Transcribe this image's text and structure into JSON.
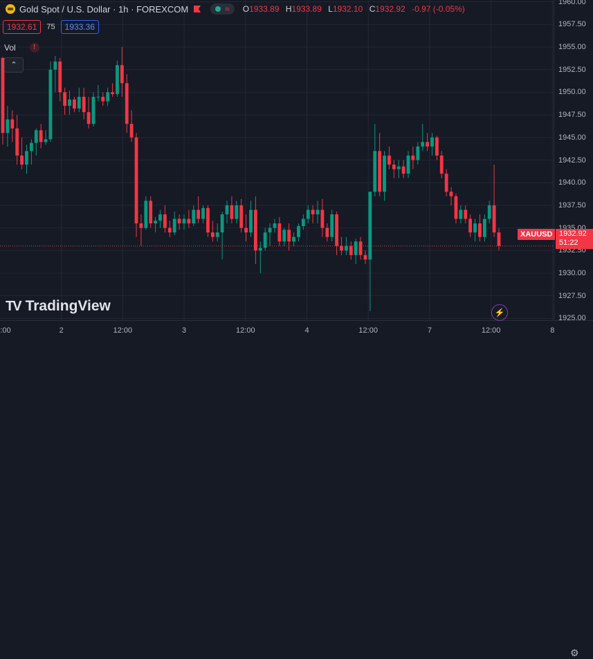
{
  "header": {
    "symbol_title": "Gold Spot / U.S. Dollar · 1h · FOREXCOM",
    "market_pill_symbol": "≈",
    "ohlc": {
      "open_key": "O",
      "open": "1933.89",
      "high_key": "H",
      "high": "1933.89",
      "low_key": "L",
      "low": "1932.10",
      "close_key": "C",
      "close": "1932.92",
      "change": "-0.97 (-0.05%)"
    }
  },
  "quote": {
    "sell": "1932.61",
    "spread": "75",
    "buy": "1933.36"
  },
  "volume": {
    "label": "Vol",
    "warning": "!"
  },
  "current_price": {
    "symbol": "XAUUSD",
    "price": "1932.92",
    "countdown": "51:22"
  },
  "brand": {
    "name": "TradingView",
    "mark": "TV"
  },
  "colors": {
    "up": "#089981",
    "down": "#f23645",
    "background": "#161a25",
    "grid": "#232734"
  },
  "icons": {
    "collapse": "chevron-up-icon",
    "alert": "flash-icon",
    "settings": "gear-icon"
  },
  "chart_data": {
    "type": "candlestick",
    "yticks": [
      "1960.00",
      "1957.50",
      "1955.00",
      "1952.50",
      "1950.00",
      "1947.50",
      "1945.00",
      "1942.50",
      "1940.00",
      "1937.50",
      "1935.00",
      "1932.50",
      "1930.00",
      "1927.50",
      "1925.00"
    ],
    "xticks": [
      ":00",
      "2",
      "12:00",
      "3",
      "12:00",
      "4",
      "12:00",
      "7",
      "12:00",
      "8"
    ],
    "ylim": [
      1924.8,
      1960.2
    ],
    "candles": [
      [
        1953.8,
        1953.9,
        1944.2,
        1945.5
      ],
      [
        1945.5,
        1948.5,
        1944.0,
        1947.0
      ],
      [
        1947.0,
        1948.0,
        1944.5,
        1946.0
      ],
      [
        1946.0,
        1947.5,
        1942.0,
        1943.0
      ],
      [
        1943.0,
        1945.0,
        1941.5,
        1942.0
      ],
      [
        1942.0,
        1944.2,
        1941.0,
        1943.5
      ],
      [
        1943.5,
        1944.8,
        1942.0,
        1944.4
      ],
      [
        1944.4,
        1946.0,
        1943.0,
        1945.8
      ],
      [
        1945.8,
        1946.5,
        1943.8,
        1944.5
      ],
      [
        1944.5,
        1945.8,
        1944.2,
        1944.8
      ],
      [
        1944.8,
        1953.4,
        1944.5,
        1952.5
      ],
      [
        1952.5,
        1954.0,
        1950.0,
        1953.4
      ],
      [
        1953.4,
        1953.8,
        1949.0,
        1950.0
      ],
      [
        1950.0,
        1950.5,
        1947.5,
        1948.5
      ],
      [
        1948.5,
        1950.2,
        1947.5,
        1949.2
      ],
      [
        1949.2,
        1949.5,
        1947.8,
        1948.2
      ],
      [
        1948.2,
        1950.5,
        1947.8,
        1949.5
      ],
      [
        1949.5,
        1950.5,
        1947.0,
        1947.8
      ],
      [
        1947.8,
        1949.5,
        1946.0,
        1946.5
      ],
      [
        1946.5,
        1950.0,
        1946.2,
        1949.5
      ],
      [
        1949.5,
        1950.8,
        1949.0,
        1949.5
      ],
      [
        1949.5,
        1950.0,
        1948.5,
        1949.0
      ],
      [
        1949.0,
        1950.5,
        1948.5,
        1950.0
      ],
      [
        1950.0,
        1951.0,
        1949.5,
        1949.8
      ],
      [
        1949.8,
        1953.5,
        1949.5,
        1953.0
      ],
      [
        1953.0,
        1955.0,
        1949.5,
        1951.0
      ],
      [
        1951.0,
        1952.0,
        1945.5,
        1946.5
      ],
      [
        1946.5,
        1948.0,
        1944.5,
        1945.0
      ],
      [
        1945.0,
        1945.5,
        1934.0,
        1935.5
      ],
      [
        1935.5,
        1936.5,
        1933.0,
        1935.0
      ],
      [
        1935.0,
        1938.5,
        1934.8,
        1938.0
      ],
      [
        1938.0,
        1938.5,
        1935.0,
        1935.5
      ],
      [
        1935.5,
        1936.2,
        1934.5,
        1935.8
      ],
      [
        1935.8,
        1937.0,
        1935.0,
        1936.5
      ],
      [
        1936.5,
        1937.5,
        1934.5,
        1935.0
      ],
      [
        1935.0,
        1935.8,
        1934.0,
        1934.5
      ],
      [
        1934.5,
        1936.8,
        1934.2,
        1936.0
      ],
      [
        1936.0,
        1936.5,
        1934.8,
        1935.5
      ],
      [
        1935.5,
        1936.5,
        1934.8,
        1936.0
      ],
      [
        1936.0,
        1937.0,
        1935.0,
        1935.5
      ],
      [
        1935.5,
        1937.5,
        1935.2,
        1937.0
      ],
      [
        1937.0,
        1938.5,
        1935.5,
        1936.0
      ],
      [
        1936.0,
        1937.5,
        1935.5,
        1937.2
      ],
      [
        1937.2,
        1937.5,
        1934.0,
        1934.5
      ],
      [
        1934.5,
        1935.8,
        1933.5,
        1934.0
      ],
      [
        1934.0,
        1935.5,
        1933.5,
        1934.5
      ],
      [
        1934.5,
        1936.8,
        1931.5,
        1936.5
      ],
      [
        1936.5,
        1938.0,
        1935.5,
        1937.5
      ],
      [
        1937.5,
        1938.5,
        1935.5,
        1936.0
      ],
      [
        1936.0,
        1938.0,
        1935.5,
        1937.5
      ],
      [
        1937.5,
        1938.2,
        1934.5,
        1935.0
      ],
      [
        1935.0,
        1936.5,
        1933.5,
        1934.5
      ],
      [
        1934.5,
        1938.0,
        1934.0,
        1937.0
      ],
      [
        1937.0,
        1938.5,
        1931.0,
        1932.5
      ],
      [
        1932.5,
        1933.5,
        1930.0,
        1932.8
      ],
      [
        1932.8,
        1935.0,
        1932.5,
        1934.5
      ],
      [
        1934.5,
        1935.5,
        1933.0,
        1935.0
      ],
      [
        1935.0,
        1936.0,
        1934.5,
        1935.5
      ],
      [
        1935.5,
        1936.2,
        1933.0,
        1933.5
      ],
      [
        1933.5,
        1935.0,
        1933.0,
        1934.8
      ],
      [
        1934.8,
        1935.5,
        1932.5,
        1933.5
      ],
      [
        1933.5,
        1934.5,
        1933.0,
        1934.0
      ],
      [
        1934.0,
        1935.5,
        1933.5,
        1935.2
      ],
      [
        1935.2,
        1936.5,
        1934.8,
        1936.0
      ],
      [
        1936.0,
        1937.5,
        1935.5,
        1937.0
      ],
      [
        1937.0,
        1937.5,
        1935.5,
        1936.5
      ],
      [
        1936.5,
        1938.0,
        1935.5,
        1937.0
      ],
      [
        1937.0,
        1938.2,
        1934.0,
        1935.0
      ],
      [
        1935.0,
        1935.5,
        1933.5,
        1934.0
      ],
      [
        1934.0,
        1937.0,
        1933.5,
        1936.5
      ],
      [
        1936.5,
        1936.8,
        1932.0,
        1933.0
      ],
      [
        1933.0,
        1934.0,
        1932.0,
        1932.5
      ],
      [
        1932.5,
        1934.0,
        1932.0,
        1933.0
      ],
      [
        1933.0,
        1933.5,
        1931.5,
        1932.0
      ],
      [
        1932.0,
        1933.8,
        1931.0,
        1933.5
      ],
      [
        1933.5,
        1934.0,
        1931.5,
        1932.0
      ],
      [
        1932.0,
        1932.5,
        1931.0,
        1931.5
      ],
      [
        1931.5,
        1939.0,
        1925.8,
        1939.0
      ],
      [
        1939.0,
        1946.5,
        1938.5,
        1943.5
      ],
      [
        1943.5,
        1945.5,
        1938.5,
        1939.0
      ],
      [
        1939.0,
        1943.5,
        1938.0,
        1943.0
      ],
      [
        1943.0,
        1944.0,
        1941.5,
        1942.0
      ],
      [
        1942.0,
        1942.5,
        1940.5,
        1941.5
      ],
      [
        1941.5,
        1942.5,
        1940.5,
        1941.8
      ],
      [
        1941.8,
        1942.5,
        1940.5,
        1941.0
      ],
      [
        1941.0,
        1943.5,
        1940.5,
        1943.0
      ],
      [
        1943.0,
        1944.0,
        1941.5,
        1942.5
      ],
      [
        1942.5,
        1944.5,
        1942.0,
        1944.0
      ],
      [
        1944.0,
        1946.5,
        1943.5,
        1944.5
      ],
      [
        1944.5,
        1945.5,
        1943.5,
        1944.0
      ],
      [
        1944.0,
        1945.5,
        1943.0,
        1945.0
      ],
      [
        1945.0,
        1945.2,
        1942.5,
        1943.0
      ],
      [
        1943.0,
        1943.5,
        1940.5,
        1941.0
      ],
      [
        1941.0,
        1941.5,
        1938.5,
        1939.0
      ],
      [
        1939.0,
        1939.5,
        1937.5,
        1938.5
      ],
      [
        1938.5,
        1938.8,
        1935.5,
        1936.0
      ],
      [
        1936.0,
        1937.5,
        1935.5,
        1937.0
      ],
      [
        1937.0,
        1937.5,
        1935.5,
        1936.0
      ],
      [
        1936.0,
        1936.5,
        1934.0,
        1934.5
      ],
      [
        1934.5,
        1936.0,
        1933.5,
        1935.5
      ],
      [
        1935.5,
        1936.5,
        1933.5,
        1934.0
      ],
      [
        1934.0,
        1936.5,
        1933.5,
        1936.0
      ],
      [
        1936.0,
        1938.0,
        1935.5,
        1937.5
      ],
      [
        1937.5,
        1942.0,
        1934.0,
        1934.5
      ],
      [
        1934.5,
        1935.0,
        1932.5,
        1933.0
      ]
    ]
  }
}
